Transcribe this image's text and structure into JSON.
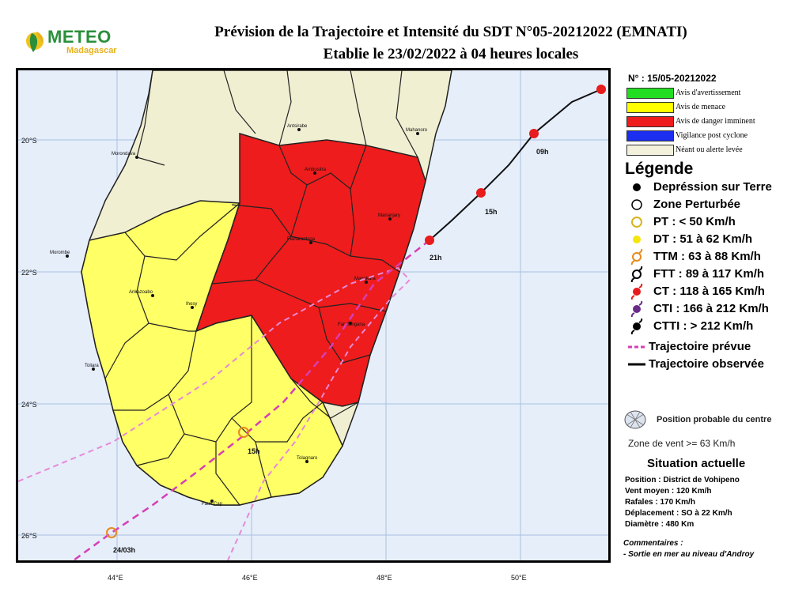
{
  "header": {
    "logo_name": "METEO",
    "logo_sub": "Madagascar",
    "title_line1": "Prévision de la Trajectoire et Intensité du SDT N°05-20212022 (EMNATI)",
    "title_line2": "Etablie le 23/02/2022 à 04 heures locales"
  },
  "map": {
    "lat_labels": [
      "20°S",
      "22°S",
      "24°S",
      "26°S"
    ],
    "lon_labels": [
      "44°E",
      "46°E",
      "48°E",
      "50°E"
    ],
    "towns": [
      "Antsirabe",
      "Mahanoro",
      "Morondava",
      "Ambositra",
      "Mananjary",
      "Fianarantsoa",
      "Morombe",
      "Manakara",
      "Ankazoabo",
      "Ihosy",
      "Farafangana",
      "Toliara",
      "Tolagnaro",
      "Faux Cap"
    ],
    "forecast_points": [
      "09h",
      "15h",
      "21h",
      "15h",
      "24/03h"
    ],
    "colors": {
      "sea": "#e6eefa",
      "red": "#ee1c1c",
      "yellow": "#ffff66",
      "beige": "#f0efd2",
      "trajectory": "#d63fb5"
    }
  },
  "alerts": {
    "number": "N° : 15/05-20212022",
    "items": [
      {
        "label": "Avis d'avertissement",
        "color": "#22dd22"
      },
      {
        "label": "Avis de menace",
        "color": "#ffff00"
      },
      {
        "label": "Avis de danger imminent",
        "color": "#ee1c1c"
      },
      {
        "label": "Vigilance post cyclone",
        "color": "#1c2ef0"
      },
      {
        "label": "Néant ou alerte levée",
        "color": "#f3f1dc"
      }
    ]
  },
  "legend": {
    "title": "Légende",
    "items": [
      {
        "label": "Depréssion sur Terre",
        "icon": "filled-dot-icon"
      },
      {
        "label": "Zone Perturbée",
        "icon": "open-circle-icon"
      },
      {
        "label": "PT : < 50 Km/h",
        "icon": "yellow-circle-icon"
      },
      {
        "label": "DT : 51 à 62 Km/h",
        "icon": "yellow-dot-icon"
      },
      {
        "label": "TTM : 63 à 88 Km/h",
        "icon": "orange-cyclone-icon"
      },
      {
        "label": "FTT : 89 à 117 Km/h",
        "icon": "black-cyclone-icon"
      },
      {
        "label": "CT : 118 à 165 Km/h",
        "icon": "red-cyclone-icon"
      },
      {
        "label": "CTI : 166 à 212 Km/h",
        "icon": "purple-cyclone-icon"
      },
      {
        "label": "CTTI : > 212 Km/h",
        "icon": "black-filled-cyclone-icon"
      },
      {
        "label": "Trajectoire prévue",
        "icon": "dashed-line-icon"
      },
      {
        "label": "Trajectoire observée",
        "icon": "solid-line-icon"
      }
    ],
    "center_label": "Position probable du centre",
    "wind_label": "Zone de vent >= 63 Km/h"
  },
  "situation": {
    "title": "Situation actuelle",
    "lines": [
      "Position : District de Vohipeno",
      "Vent moyen : 120 Km/h",
      "Rafales : 170 Km/h",
      "Déplacement : SO à 22 Km/h",
      "Diamètre : 480 Km"
    ],
    "comments_title": "Commentaires :",
    "comments_text": "- Sortie en mer au niveau d'Androy"
  }
}
